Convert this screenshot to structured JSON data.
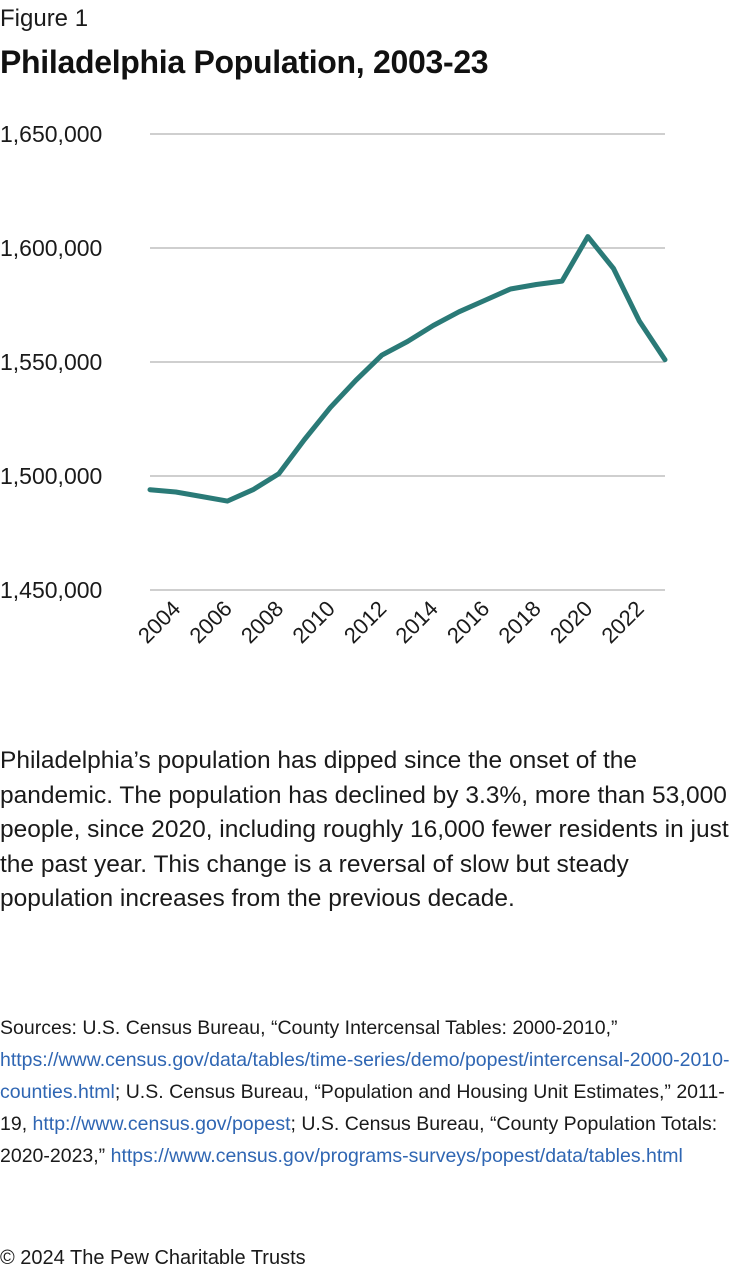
{
  "figure_label": "Figure 1",
  "title": "Philadelphia Population, 2003-23",
  "chart_data": {
    "type": "line",
    "title": "Philadelphia Population, 2003-23",
    "xlabel": "",
    "ylabel": "",
    "x": [
      2003,
      2004,
      2005,
      2006,
      2007,
      2008,
      2009,
      2010,
      2011,
      2012,
      2013,
      2014,
      2015,
      2016,
      2017,
      2018,
      2019,
      2020,
      2021,
      2022,
      2023
    ],
    "series": [
      {
        "values": [
          1494000,
          1493000,
          1491000,
          1489000,
          1494000,
          1501000,
          1516000,
          1530000,
          1542000,
          1553000,
          1559000,
          1566000,
          1572000,
          1577000,
          1582000,
          1584000,
          1585500,
          1605000,
          1591000,
          1568000,
          1551000
        ],
        "color": "#2a7a77"
      }
    ],
    "ylim": [
      1450000,
      1650000
    ],
    "y_ticks": [
      1650000,
      1600000,
      1550000,
      1500000,
      1450000
    ],
    "y_tick_labels": [
      "1,650,000",
      "1,600,000",
      "1,550,000",
      "1,500,000",
      "1,450,000"
    ],
    "x_tick_labels": [
      "2004",
      "2006",
      "2008",
      "2010",
      "2012",
      "2014",
      "2016",
      "2018",
      "2020",
      "2022"
    ],
    "x_tick_values": [
      2004,
      2006,
      2008,
      2010,
      2012,
      2014,
      2016,
      2018,
      2020,
      2022
    ],
    "grid": true,
    "legend": "none"
  },
  "description": "Philadelphia’s population has dipped since the onset of the pandemic. The population has declined by 3.3%, more than 53,000 people, since 2020, including roughly 16,000 fewer residents in just the past year. This change is a reversal of slow but steady population increases from the previous decade.",
  "sources": {
    "prefix": "Sources: U.S. Census Bureau, “County Intercensal Tables: 2000-2010,” ",
    "link1": "https://www.census.gov/data/tables/time-series/demo/popest/intercensal-2000-2010-counties.html",
    "mid1": "; U.S. Census Bureau, “Population and Housing Unit Estimates,” 2011-19, ",
    "link2": "http://www.census.gov/popest",
    "mid2": "; U.S. Census Bureau, “County Population Totals: 2020-2023,” ",
    "link3": "https://www.census.gov/programs-surveys/popest/data/tables.html"
  },
  "copyright": "© 2024 The Pew Charitable Trusts",
  "colors": {
    "line": "#2a7a77",
    "grid": "#bfbfbf",
    "link": "#2f66b3"
  }
}
